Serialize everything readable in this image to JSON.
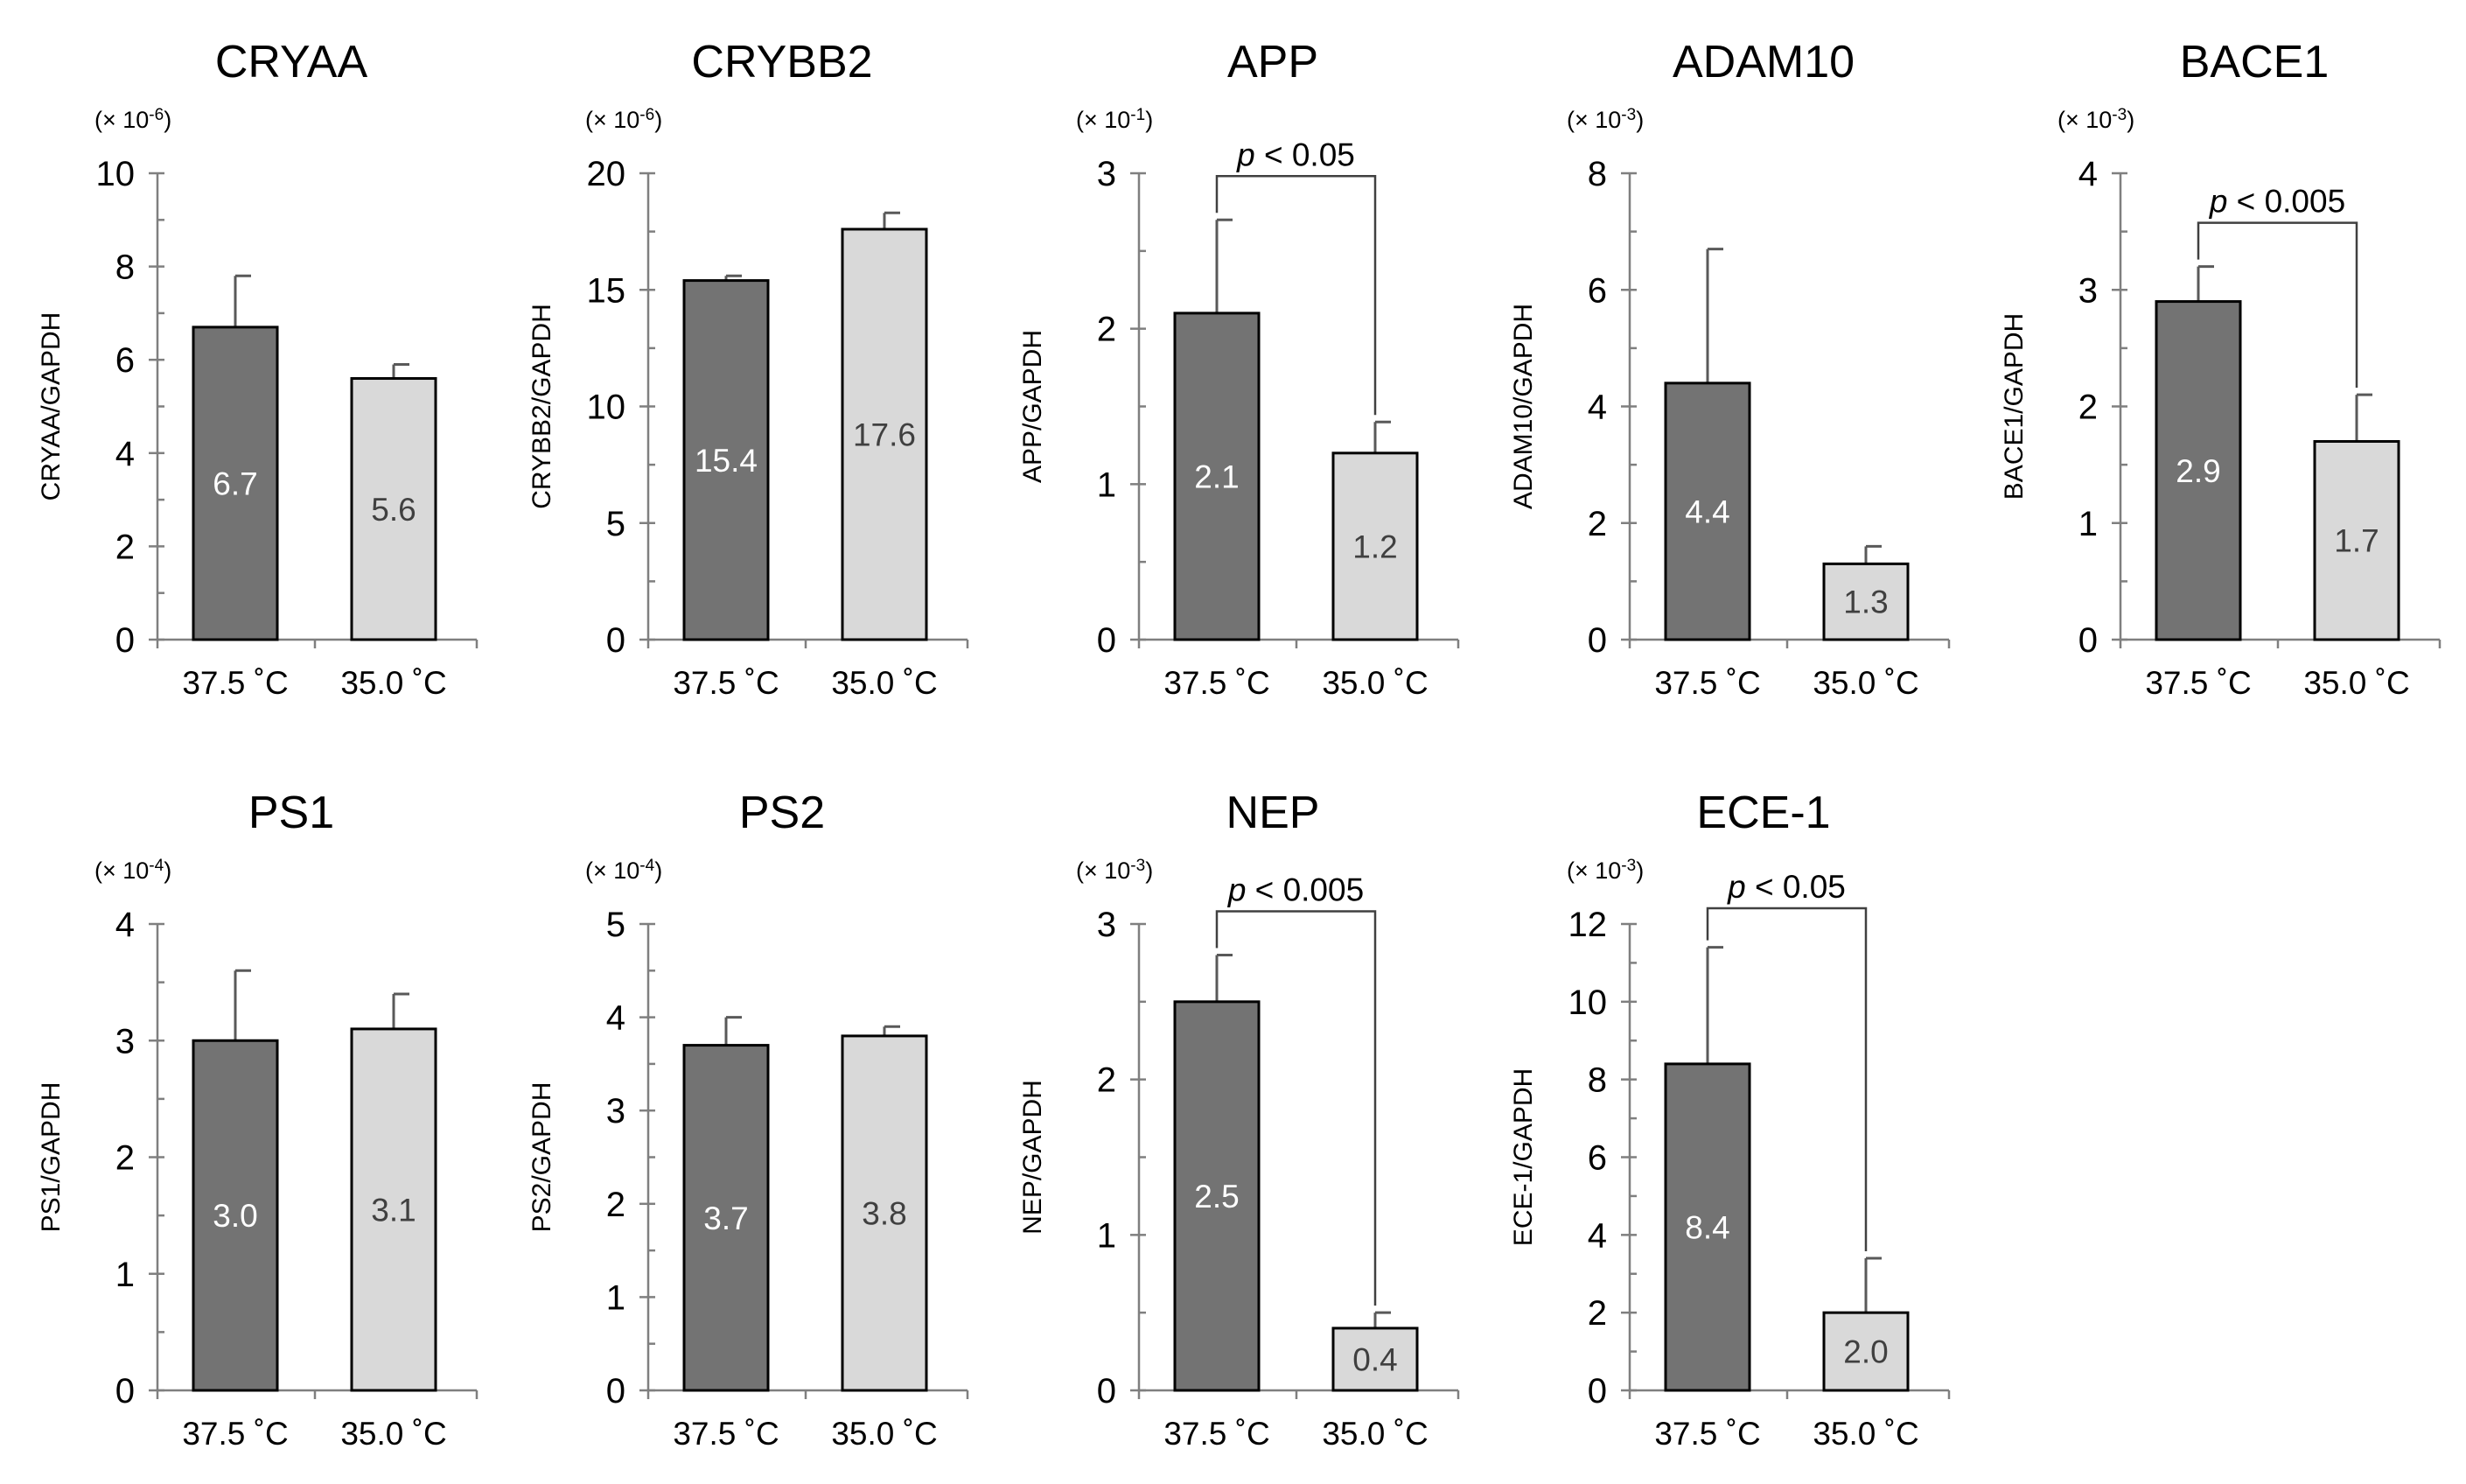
{
  "colors": {
    "bar_37_5": "#737373",
    "bar_35_0": "#d9d9d9",
    "label_on_dark": "#ffffff",
    "label_on_light": "#404040"
  },
  "chart_data": [
    {
      "type": "bar",
      "title": "CRYAA",
      "ylabel": "CRYAA/GAPDH",
      "multiplier": "(× 10",
      "multiplier_exp": "-6",
      "categories": [
        "37.5 ˚C",
        "35.0 ˚C"
      ],
      "values": [
        6.7,
        5.6
      ],
      "value_labels": [
        "6.7",
        "5.6"
      ],
      "errors": [
        1.1,
        0.3
      ],
      "ylim": [
        0,
        10
      ],
      "yticks": [
        "0",
        "2",
        "4",
        "6",
        "8",
        "10"
      ],
      "minor_step": 1,
      "significance": null
    },
    {
      "type": "bar",
      "title": "CRYBB2",
      "ylabel": "CRYBB2/GAPDH",
      "multiplier": "(× 10",
      "multiplier_exp": "-6",
      "categories": [
        "37.5 ˚C",
        "35.0 ˚C"
      ],
      "values": [
        15.4,
        17.6
      ],
      "value_labels": [
        "15.4",
        "17.6"
      ],
      "errors": [
        0.2,
        0.7
      ],
      "ylim": [
        0,
        20
      ],
      "yticks": [
        "0",
        "5",
        "10",
        "15",
        "20"
      ],
      "minor_step": 2.5,
      "significance": null
    },
    {
      "type": "bar",
      "title": "APP",
      "ylabel": "APP/GAPDH",
      "multiplier": "(× 10",
      "multiplier_exp": "-1",
      "categories": [
        "37.5 ˚C",
        "35.0 ˚C"
      ],
      "values": [
        2.1,
        1.2
      ],
      "value_labels": [
        "2.1",
        "1.2"
      ],
      "errors": [
        0.6,
        0.2
      ],
      "ylim": [
        0,
        3
      ],
      "yticks": [
        "0",
        "1",
        "2",
        "3"
      ],
      "minor_step": 0.5,
      "significance": {
        "italic": "p",
        "rest": " < 0.05"
      }
    },
    {
      "type": "bar",
      "title": "ADAM10",
      "ylabel": "ADAM10/GAPDH",
      "multiplier": "(× 10",
      "multiplier_exp": "-3",
      "categories": [
        "37.5 ˚C",
        "35.0 ˚C"
      ],
      "values": [
        4.4,
        1.3
      ],
      "value_labels": [
        "4.4",
        "1.3"
      ],
      "errors": [
        2.3,
        0.3
      ],
      "ylim": [
        0,
        8
      ],
      "yticks": [
        "0",
        "2",
        "4",
        "6",
        "8"
      ],
      "minor_step": 1,
      "significance": null
    },
    {
      "type": "bar",
      "title": "BACE1",
      "ylabel": "BACE1/GAPDH",
      "multiplier": "(× 10",
      "multiplier_exp": "-3",
      "categories": [
        "37.5 ˚C",
        "35.0 ˚C"
      ],
      "values": [
        2.9,
        1.7
      ],
      "value_labels": [
        "2.9",
        "1.7"
      ],
      "errors": [
        0.3,
        0.4
      ],
      "ylim": [
        0,
        4
      ],
      "yticks": [
        "0",
        "1",
        "2",
        "3",
        "4"
      ],
      "minor_step": 0.5,
      "significance": {
        "italic": "p",
        "rest": " < 0.005"
      }
    },
    {
      "type": "bar",
      "title": "PS1",
      "ylabel": "PS1/GAPDH",
      "multiplier": "(× 10",
      "multiplier_exp": "-4",
      "categories": [
        "37.5 ˚C",
        "35.0 ˚C"
      ],
      "values": [
        3.0,
        3.1
      ],
      "value_labels": [
        "3.0",
        "3.1"
      ],
      "errors": [
        0.6,
        0.3
      ],
      "ylim": [
        0,
        4
      ],
      "yticks": [
        "0",
        "1",
        "2",
        "3",
        "4"
      ],
      "minor_step": 0.5,
      "significance": null
    },
    {
      "type": "bar",
      "title": "PS2",
      "ylabel": "PS2/GAPDH",
      "multiplier": "(× 10",
      "multiplier_exp": "-4",
      "categories": [
        "37.5 ˚C",
        "35.0 ˚C"
      ],
      "values": [
        3.7,
        3.8
      ],
      "value_labels": [
        "3.7",
        "3.8"
      ],
      "errors": [
        0.3,
        0.1
      ],
      "ylim": [
        0,
        5
      ],
      "yticks": [
        "0",
        "1",
        "2",
        "3",
        "4",
        "5"
      ],
      "minor_step": 0.5,
      "significance": null
    },
    {
      "type": "bar",
      "title": "NEP",
      "ylabel": "NEP/GAPDH",
      "multiplier": "(× 10",
      "multiplier_exp": "-3",
      "categories": [
        "37.5 ˚C",
        "35.0 ˚C"
      ],
      "values": [
        2.5,
        0.4
      ],
      "value_labels": [
        "2.5",
        "0.4"
      ],
      "errors": [
        0.3,
        0.1
      ],
      "ylim": [
        0,
        3
      ],
      "yticks": [
        "0",
        "1",
        "2",
        "3"
      ],
      "minor_step": 0.5,
      "significance": {
        "italic": "p",
        "rest": " < 0.005"
      }
    },
    {
      "type": "bar",
      "title": "ECE-1",
      "ylabel": "ECE-1/GAPDH",
      "multiplier": "(× 10",
      "multiplier_exp": "-3",
      "categories": [
        "37.5 ˚C",
        "35.0 ˚C"
      ],
      "values": [
        8.4,
        2.0
      ],
      "value_labels": [
        "8.4",
        "2.0"
      ],
      "errors": [
        3.0,
        1.4
      ],
      "ylim": [
        0,
        12
      ],
      "yticks": [
        "0",
        "2",
        "4",
        "6",
        "8",
        "10",
        "12"
      ],
      "minor_step": 1,
      "significance": {
        "italic": "p",
        "rest": " < 0.05"
      }
    }
  ]
}
